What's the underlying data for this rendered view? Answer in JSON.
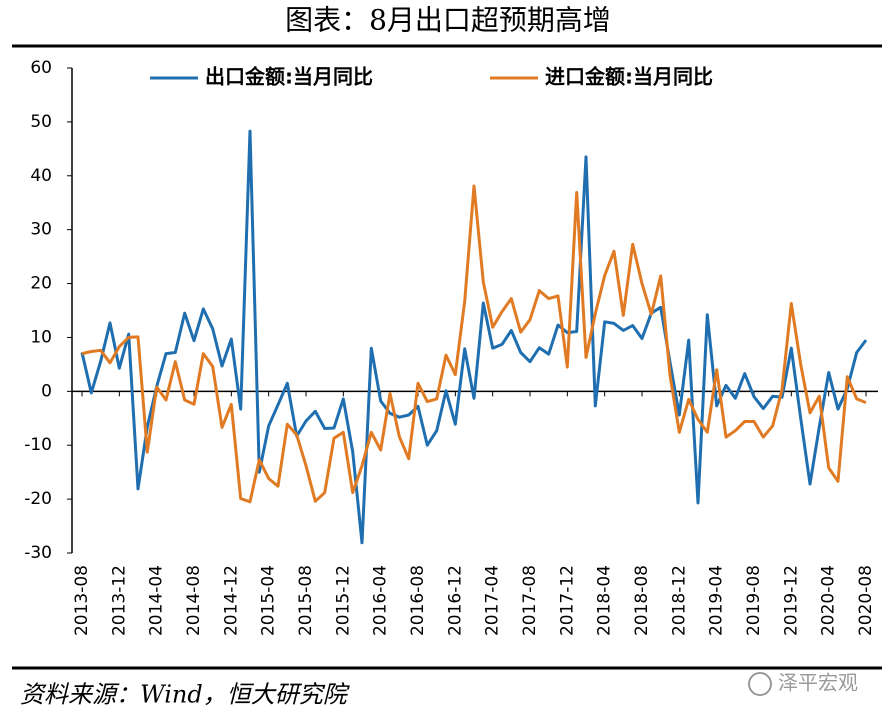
{
  "chart_data": {
    "type": "line",
    "title": "图表：8月出口超预期高增",
    "categories": [
      "2013-08",
      null,
      null,
      null,
      "2013-12",
      null,
      null,
      null,
      "2014-04",
      null,
      null,
      null,
      "2014-08",
      null,
      null,
      null,
      "2014-12",
      null,
      null,
      null,
      "2015-04",
      null,
      null,
      null,
      "2015-08",
      null,
      null,
      null,
      "2015-12",
      null,
      null,
      null,
      "2016-04",
      null,
      null,
      null,
      "2016-08",
      null,
      null,
      null,
      "2016-12",
      null,
      null,
      null,
      "2017-04",
      null,
      null,
      null,
      "2017-08",
      null,
      null,
      null,
      "2017-12",
      null,
      null,
      null,
      "2018-04",
      null,
      null,
      null,
      "2018-08",
      null,
      null,
      null,
      "2018-12",
      null,
      null,
      null,
      "2019-04",
      null,
      null,
      null,
      "2019-08",
      null,
      null,
      null,
      "2019-12",
      null,
      null,
      null,
      "2020-04",
      null,
      null,
      null,
      "2020-08"
    ],
    "series": [
      {
        "name": "出口金额:当月同比",
        "color": "#1f6fb0",
        "values": [
          7.2,
          -0.3,
          5.6,
          12.7,
          4.3,
          10.6,
          -18.1,
          -6.6,
          0.9,
          7.0,
          7.2,
          14.5,
          9.4,
          15.3,
          11.6,
          4.7,
          9.7,
          -3.3,
          48.3,
          -15.0,
          -6.4,
          -2.5,
          1.5,
          -8.3,
          -5.5,
          -3.7,
          -6.9,
          -6.8,
          -1.4,
          -11.2,
          -28.1,
          8.0,
          -1.8,
          -4.1,
          -4.8,
          -4.4,
          -2.8,
          -10.0,
          -7.3,
          0.1,
          -6.1,
          7.9,
          -1.3,
          16.4,
          8.0,
          8.7,
          11.3,
          7.2,
          5.5,
          8.1,
          6.9,
          12.3,
          10.9,
          11.1,
          43.5,
          -2.7,
          12.9,
          12.6,
          11.3,
          12.2,
          9.8,
          14.5,
          15.6,
          5.4,
          -4.4,
          9.5,
          -20.7,
          14.2,
          -2.7,
          1.1,
          -1.3,
          3.3,
          -1.0,
          -3.2,
          -0.9,
          -1.1,
          8.0,
          -5.0,
          -17.2,
          -6.6,
          3.5,
          -3.3,
          0.5,
          7.2,
          9.5
        ]
      },
      {
        "name": "进口金额:当月同比",
        "color": "#e07b24",
        "values": [
          7.0,
          7.4,
          7.6,
          5.3,
          8.3,
          10.0,
          10.1,
          -11.3,
          0.8,
          -1.6,
          5.5,
          -1.6,
          -2.4,
          7.0,
          4.6,
          -6.7,
          -2.4,
          -19.9,
          -20.5,
          -12.7,
          -16.2,
          -17.6,
          -6.1,
          -8.1,
          -13.8,
          -20.4,
          -18.8,
          -8.7,
          -7.6,
          -18.8,
          -13.8,
          -7.6,
          -10.9,
          -0.4,
          -8.4,
          -12.5,
          1.5,
          -1.9,
          -1.4,
          6.7,
          3.1,
          16.7,
          38.1,
          20.3,
          11.9,
          14.8,
          17.2,
          11.0,
          13.3,
          18.7,
          17.2,
          17.7,
          4.5,
          36.9,
          6.3,
          14.4,
          21.5,
          26.0,
          14.1,
          27.3,
          20.0,
          14.3,
          21.4,
          3.0,
          -7.6,
          -1.5,
          -5.2,
          -7.6,
          4.0,
          -8.5,
          -7.3,
          -5.6,
          -5.6,
          -8.5,
          -6.4,
          0.3,
          16.3,
          5.0,
          -4.0,
          -0.9,
          -14.2,
          -16.7,
          2.7,
          -1.4,
          -2.1
        ]
      }
    ],
    "ylim": [
      -30,
      60
    ],
    "yticks": [
      -30,
      -20,
      -10,
      0,
      10,
      20,
      30,
      40,
      50,
      60
    ],
    "legend": "top",
    "grid": false
  },
  "source": "资料来源：Wind，恒大研究院",
  "watermark": "泽平宏观"
}
